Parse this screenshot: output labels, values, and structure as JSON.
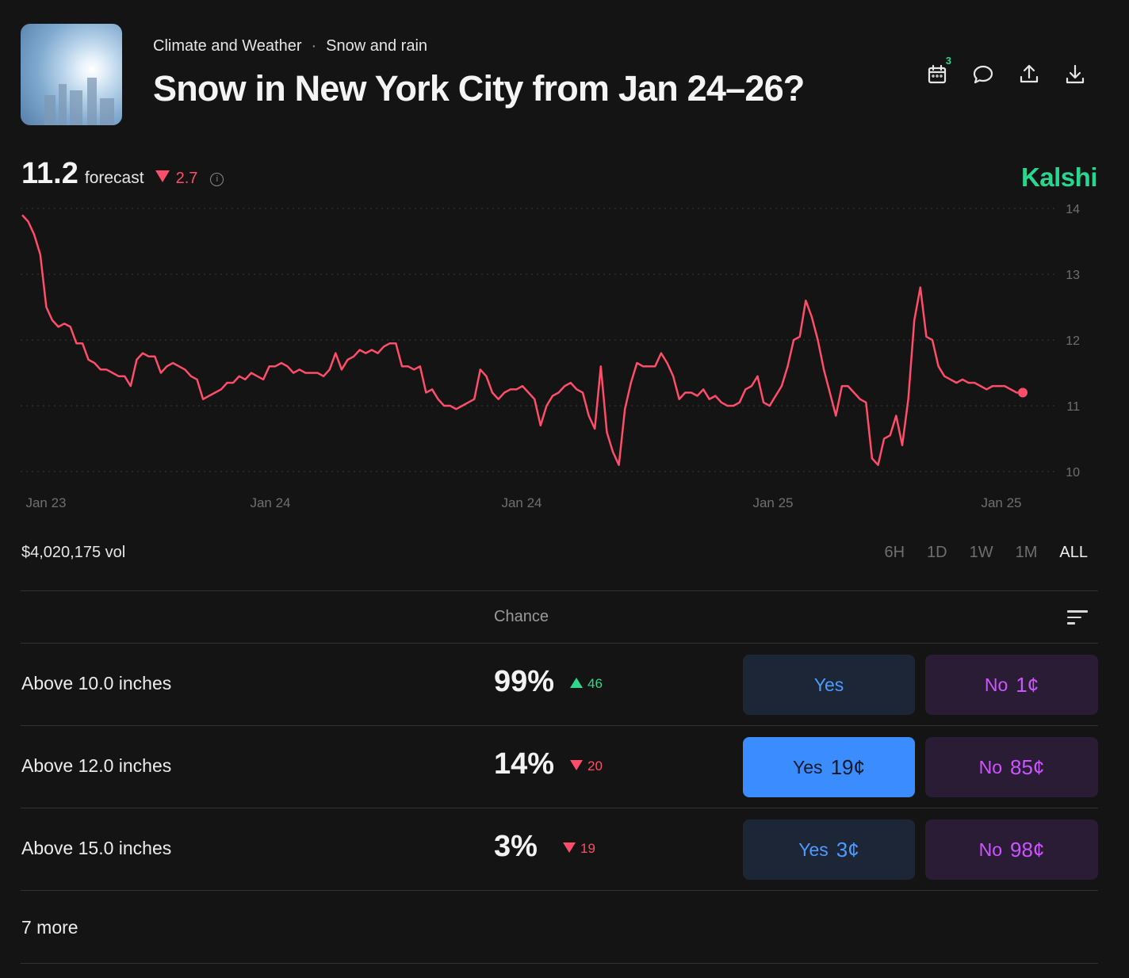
{
  "header": {
    "category": "Climate and Weather",
    "subcategory": "Snow and rain",
    "separator": "·",
    "title": "Snow in New York City from Jan 24–26?",
    "calendar_badge": "3"
  },
  "icons": [
    "calendar-icon",
    "comment-icon",
    "share-icon",
    "download-icon"
  ],
  "forecast": {
    "value": "11.2",
    "label": "forecast",
    "change": "2.7",
    "direction": "down",
    "info": "i"
  },
  "brand": "Kalshi",
  "volume": "$4,020,175 vol",
  "ranges": [
    "6H",
    "1D",
    "1W",
    "1M",
    "ALL"
  ],
  "active_range": "ALL",
  "table": {
    "header": "Chance",
    "rows": [
      {
        "label": "Above 10.0 inches",
        "chance": "99%",
        "delta": "46",
        "dir": "up",
        "yes_label": "Yes",
        "yes_price": "",
        "no_label": "No",
        "no_price": "1¢",
        "yes_active": false
      },
      {
        "label": "Above 12.0 inches",
        "chance": "14%",
        "delta": "20",
        "dir": "down",
        "yes_label": "Yes",
        "yes_price": "19¢",
        "no_label": "No",
        "no_price": "85¢",
        "yes_active": true
      },
      {
        "label": "Above 15.0 inches",
        "chance": "3%",
        "delta": "19",
        "dir": "down",
        "yes_label": "Yes",
        "yes_price": "3¢",
        "no_label": "No",
        "no_price": "98¢",
        "yes_active": false
      }
    ],
    "more": "7 more"
  },
  "colors": {
    "background": "#141414",
    "line": "#ff4d6a",
    "brand": "#27d68f",
    "yes": "#4d9bff",
    "no": "#cc55ff"
  },
  "chart_data": {
    "type": "line",
    "ylim": [
      10,
      14
    ],
    "yticks": [
      10,
      11,
      12,
      13,
      14
    ],
    "xtick_labels": [
      "Jan 23",
      "Jan 24",
      "Jan 24",
      "Jan 25",
      "Jan 25"
    ],
    "grid": true,
    "series": [
      {
        "values": [
          13.9,
          13.8,
          13.6,
          13.3,
          12.5,
          12.3,
          12.2,
          12.25,
          12.2,
          11.95,
          11.95,
          11.7,
          11.65,
          11.55,
          11.55,
          11.5,
          11.45,
          11.45,
          11.3,
          11.7,
          11.8,
          11.75,
          11.75,
          11.5,
          11.6,
          11.65,
          11.6,
          11.55,
          11.45,
          11.4,
          11.1,
          11.15,
          11.2,
          11.25,
          11.35,
          11.35,
          11.45,
          11.4,
          11.5,
          11.45,
          11.4,
          11.6,
          11.6,
          11.65,
          11.6,
          11.5,
          11.55,
          11.5,
          11.5,
          11.5,
          11.45,
          11.55,
          11.8,
          11.55,
          11.7,
          11.75,
          11.85,
          11.8,
          11.85,
          11.8,
          11.9,
          11.95,
          11.95,
          11.6,
          11.6,
          11.55,
          11.6,
          11.2,
          11.25,
          11.1,
          11.0,
          11.0,
          10.95,
          11.0,
          11.05,
          11.1,
          11.55,
          11.45,
          11.2,
          11.1,
          11.2,
          11.25,
          11.25,
          11.3,
          11.2,
          11.1,
          10.7,
          11.0,
          11.15,
          11.2,
          11.3,
          11.35,
          11.25,
          11.2,
          10.85,
          10.65,
          11.6,
          10.6,
          10.3,
          10.1,
          10.95,
          11.35,
          11.65,
          11.6,
          11.6,
          11.6,
          11.8,
          11.65,
          11.45,
          11.1,
          11.2,
          11.2,
          11.15,
          11.25,
          11.1,
          11.15,
          11.05,
          11.0,
          11.0,
          11.05,
          11.25,
          11.3,
          11.45,
          11.05,
          11.0,
          11.15,
          11.3,
          11.6,
          12.0,
          12.05,
          12.6,
          12.35,
          12.0,
          11.55,
          11.2,
          10.85,
          11.3,
          11.3,
          11.2,
          11.1,
          11.05,
          10.2,
          10.1,
          10.5,
          10.55,
          10.85,
          10.4,
          11.1,
          12.3,
          12.8,
          12.05,
          12.0,
          11.6,
          11.45,
          11.4,
          11.35,
          11.4,
          11.35,
          11.35,
          11.3,
          11.25,
          11.3,
          11.3,
          11.3,
          11.25,
          11.2,
          11.2
        ]
      }
    ]
  }
}
